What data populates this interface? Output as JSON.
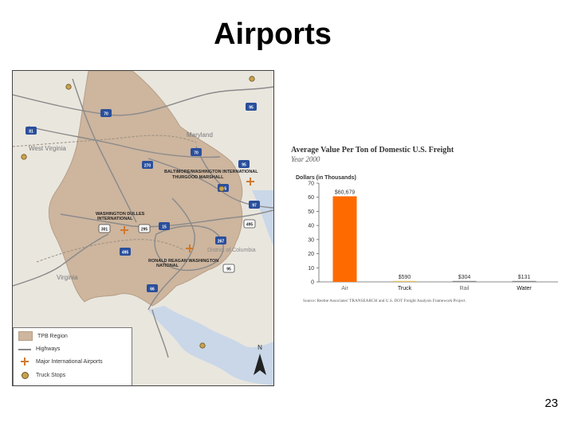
{
  "slide": {
    "title": "Airports",
    "page_number": "23"
  },
  "map": {
    "states": [
      "Maryland",
      "West Virginia",
      "Virginia",
      "District of Columbia"
    ],
    "airports": [
      "BALTIMORE/WASHINGTON INTERNATIONAL",
      "THURGOOD MARSHALL",
      "WASHINGTON DULLES",
      "INTERNATIONAL",
      "RONALD REAGAN WASHINGTON",
      "NATIONAL"
    ],
    "shields": [
      "70",
      "81",
      "70",
      "270",
      "95",
      "895",
      "95",
      "97",
      "15",
      "267",
      "495",
      "66",
      "495",
      "301",
      "295",
      "95"
    ],
    "north_label": "N",
    "legend": {
      "items": [
        {
          "label": "TPB Region",
          "icon": "region-swatch"
        },
        {
          "label": "Highways",
          "icon": "highway-line"
        },
        {
          "label": "Major International Airports",
          "icon": "airport-plus-icon"
        },
        {
          "label": "Truck Stops",
          "icon": "truck-stop-dot-icon"
        }
      ]
    },
    "colors": {
      "region": "#cdb59e",
      "background": "#e9e6de",
      "water": "#c9d7e8",
      "highway": "#8a8a8a",
      "airport": "#d07a2e",
      "truck_stop": "#c9a24f",
      "interstate": "#2a4f9c"
    }
  },
  "chart_data": {
    "type": "bar",
    "title": "Average Value Per Ton of Domestic U.S. Freight",
    "subtitle": "Year 2000",
    "ylabel": "Dollars (in Thousands)",
    "xlabel": "",
    "categories": [
      "Air",
      "Truck",
      "Rail",
      "Water"
    ],
    "values": [
      60.679,
      0.59,
      0.304,
      0.131
    ],
    "data_labels": [
      "$60,679",
      "$590",
      "$304",
      "$131"
    ],
    "yticks": [
      "0",
      "10",
      "20",
      "30",
      "40",
      "50",
      "60",
      "70"
    ],
    "ylim": [
      0,
      70
    ],
    "source": "Source: Reebie Associates' TRANSEARCH and U.S. DOT Freight Analysis Framework Project.",
    "colors": {
      "Air": "#ff6a00",
      "Truck": "#e0c060",
      "Rail": "#888888",
      "Water": "#888888"
    },
    "grid": false,
    "legend": "none"
  }
}
